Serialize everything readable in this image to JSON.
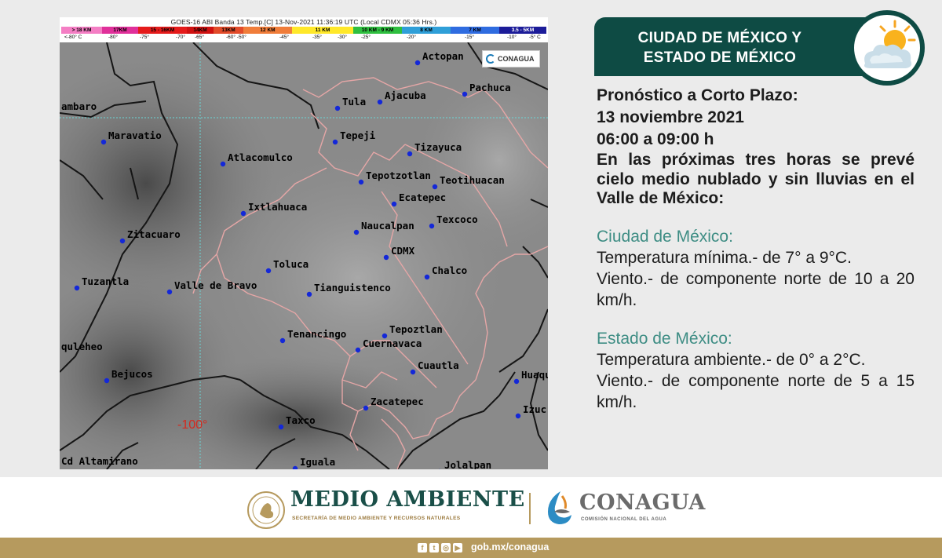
{
  "map": {
    "title": "GOES-16 ABI Banda 13 Temp.[C] 13-Nov-2021 11:36:19 UTC (Local CDMX  05:36 Hrs.)",
    "scale_segments": [
      {
        "label": "> 18 KM",
        "color": "#f47ec4"
      },
      {
        "label": "17KM",
        "color": "#e0309a"
      },
      {
        "label": "15 - 16KM",
        "color": "#e51b1b"
      },
      {
        "label": "14KM",
        "color": "#cf1111"
      },
      {
        "label": "13KM",
        "color": "#e24b2a"
      },
      {
        "label": "12 KM",
        "color": "#f07d3a"
      },
      {
        "label": "11 KM",
        "color": "#ffe82a"
      },
      {
        "label": "10 KM - 9 KM",
        "color": "#2fbf40"
      },
      {
        "label": "8 KM",
        "color": "#2f9fd8"
      },
      {
        "label": "7 KM",
        "color": "#2f6ce0"
      },
      {
        "label": "3.5 - 5KM",
        "color": "#1c1c99"
      }
    ],
    "scale_temps": [
      "<-80° C",
      "-80°",
      "-75°",
      "-70°",
      "-65°",
      "-60° -50°",
      "-45°",
      "-35°",
      "-30°",
      "-25°",
      "-20°",
      "-15°",
      "-10°",
      "-5° C"
    ],
    "longitude_label": "-100°",
    "cities": [
      "Actopan",
      "Pachuca",
      "ambaro",
      "Tula",
      "Ajacuba",
      "Maravatio",
      "Tepeji",
      "Tizayuca",
      "Atlacomulco",
      "Tepotzotlan",
      "Teotihuacan",
      "Ecatepec",
      "Ixtlahuaca",
      "Texcoco",
      "Zitacuaro",
      "Naucalpan",
      "CDMX",
      "Toluca",
      "Chalco",
      "Tuzantla",
      "Valle de Bravo",
      "Tianguistenco",
      "Tepoztlan",
      "Tenancingo",
      "Cuernavaca",
      "quleheo",
      "Cuautla",
      "Bejucos",
      "Huaqu",
      "Zacatepec",
      "Izuc",
      "Taxco",
      "Cd Altamirano",
      "Iguala",
      "Jolalpan"
    ],
    "watermark": "CONAGUA"
  },
  "banner": {
    "line1": "CIUDAD DE MÉXICO Y",
    "line2": "ESTADO DE MÉXICO",
    "icon": "sun-cloud-icon"
  },
  "forecast": {
    "heading": "Pronóstico a Corto Plazo:",
    "date": "13 noviembre 2021",
    "hours": "06:00 a 09:00 h",
    "summary": "En las próximas tres horas se prevé cielo medio nublado y sin lluvias en el Valle de México:",
    "cdmx": {
      "title": "Ciudad de México:",
      "temp": "Temperatura mínima.- de 7° a 9°C.",
      "wind": "Viento.- de componente norte de 10 a 20 km/h."
    },
    "edomex": {
      "title": "Estado de México:",
      "temp": "Temperatura ambiente.- de 0° a 2°C.",
      "wind": "Viento.- de componente norte de 5 a 15 km/h."
    }
  },
  "footer": {
    "ma_title": "MEDIO AMBIENTE",
    "ma_sub": "SECRETARÍA DE MEDIO AMBIENTE Y RECURSOS NATURALES",
    "cg_title": "CONAGUA",
    "cg_sub": "COMISIÓN NACIONAL DEL AGUA",
    "url": "gob.mx/conagua",
    "social_icons": [
      "facebook-icon",
      "twitter-icon",
      "instagram-icon",
      "youtube-icon"
    ]
  },
  "colors": {
    "banner": "#0e4b44",
    "accent_text": "#3e8d84",
    "gold": "#b69a5e"
  }
}
